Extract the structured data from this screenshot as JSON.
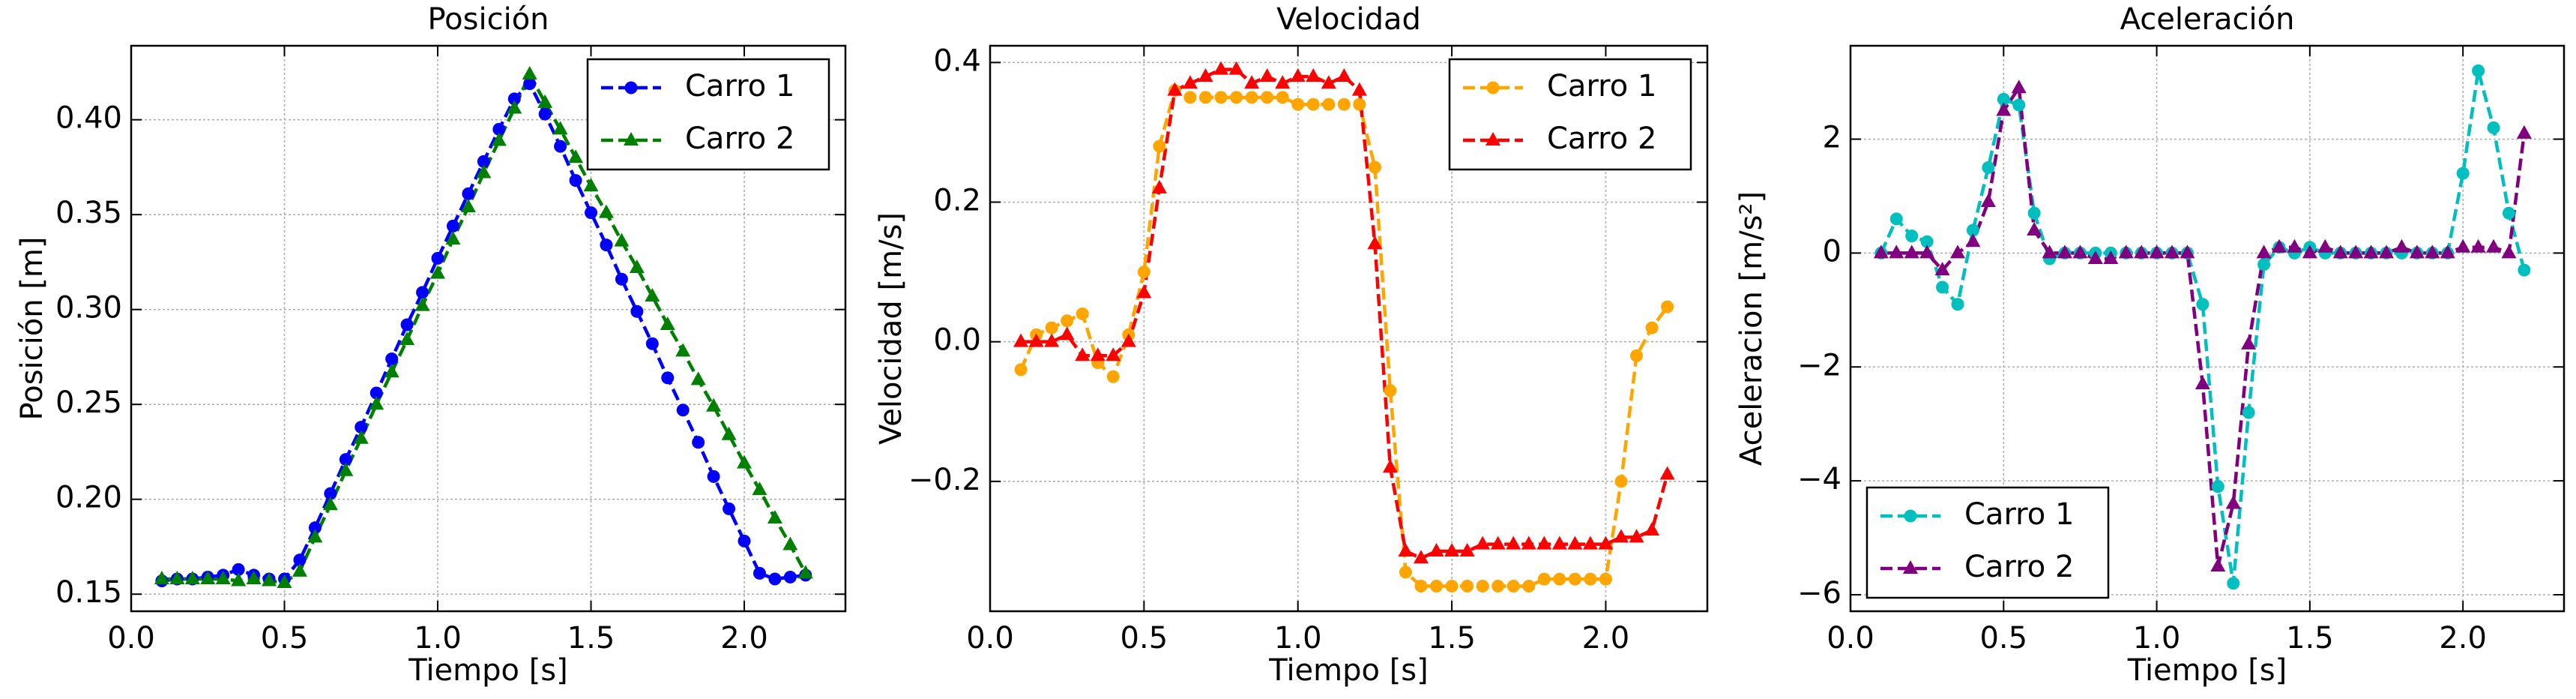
{
  "chart_data": [
    {
      "type": "line",
      "title": "Posición",
      "x_label": "Tiempo [s]",
      "y_label": "Posición [m]",
      "legend": "upper right",
      "grid": true,
      "x": [
        0.1,
        0.15,
        0.2,
        0.25,
        0.3,
        0.35,
        0.4,
        0.45,
        0.5,
        0.55,
        0.6,
        0.65,
        0.7,
        0.75,
        0.8,
        0.85,
        0.9,
        0.95,
        1.0,
        1.05,
        1.1,
        1.15,
        1.2,
        1.25,
        1.3,
        1.35,
        1.4,
        1.45,
        1.5,
        1.55,
        1.6,
        1.65,
        1.7,
        1.75,
        1.8,
        1.85,
        1.9,
        1.95,
        2.0,
        2.05,
        2.1,
        2.15,
        2.2
      ],
      "series": [
        {
          "name": "Carro 1",
          "color": "#0000ff",
          "marker": "circle",
          "values": [
            0.157,
            0.158,
            0.158,
            0.159,
            0.16,
            0.163,
            0.16,
            0.158,
            0.158,
            0.168,
            0.185,
            0.203,
            0.221,
            0.238,
            0.256,
            0.274,
            0.292,
            0.309,
            0.327,
            0.344,
            0.361,
            0.378,
            0.395,
            0.411,
            0.419,
            0.403,
            0.386,
            0.368,
            0.351,
            0.334,
            0.316,
            0.299,
            0.282,
            0.264,
            0.247,
            0.23,
            0.212,
            0.195,
            0.178,
            0.161,
            0.158,
            0.159,
            0.16
          ]
        },
        {
          "name": "Carro 2",
          "color": "#008000",
          "marker": "triangle",
          "values": [
            0.158,
            0.158,
            0.158,
            0.158,
            0.158,
            0.157,
            0.158,
            0.157,
            0.156,
            0.162,
            0.18,
            0.197,
            0.215,
            0.232,
            0.25,
            0.267,
            0.284,
            0.302,
            0.319,
            0.337,
            0.354,
            0.372,
            0.389,
            0.406,
            0.424,
            0.409,
            0.395,
            0.38,
            0.365,
            0.351,
            0.336,
            0.322,
            0.307,
            0.292,
            0.278,
            0.263,
            0.249,
            0.234,
            0.219,
            0.205,
            0.19,
            0.176,
            0.161
          ]
        }
      ],
      "xlim": [
        0,
        2.33
      ],
      "xticks": [
        {
          "value": 0,
          "label": "0.0"
        },
        0.5,
        {
          "value": 1,
          "label": "1.0"
        },
        1.5,
        {
          "value": 2,
          "label": "2.0"
        }
      ],
      "ylim": [
        0.141,
        0.439
      ],
      "yticks": [
        0.15,
        {
          "value": 0.2,
          "label": "0.20"
        },
        0.25,
        {
          "value": 0.3,
          "label": "0.30"
        },
        0.35,
        {
          "value": 0.4,
          "label": "0.40"
        }
      ]
    },
    {
      "type": "line",
      "title": "Velocidad",
      "x_label": "Tiempo [s]",
      "y_label": "Velocidad [m/s]",
      "legend": "upper right",
      "grid": true,
      "x": [
        0.1,
        0.15,
        0.2,
        0.25,
        0.3,
        0.35,
        0.4,
        0.45,
        0.5,
        0.55,
        0.6,
        0.65,
        0.7,
        0.75,
        0.8,
        0.85,
        0.9,
        0.95,
        1.0,
        1.05,
        1.1,
        1.15,
        1.2,
        1.25,
        1.3,
        1.35,
        1.4,
        1.45,
        1.5,
        1.55,
        1.6,
        1.65,
        1.7,
        1.75,
        1.8,
        1.85,
        1.9,
        1.95,
        2.0,
        2.05,
        2.1,
        2.15,
        2.2
      ],
      "series": [
        {
          "name": "Carro 1",
          "color": "#ffa500",
          "marker": "circle",
          "values": [
            -0.04,
            0.01,
            0.02,
            0.03,
            0.04,
            -0.03,
            -0.05,
            0.01,
            0.1,
            0.28,
            0.36,
            0.35,
            0.35,
            0.35,
            0.35,
            0.35,
            0.35,
            0.35,
            0.34,
            0.34,
            0.34,
            0.34,
            0.34,
            0.25,
            -0.07,
            -0.33,
            -0.35,
            -0.35,
            -0.35,
            -0.35,
            -0.35,
            -0.35,
            -0.35,
            -0.35,
            -0.34,
            -0.34,
            -0.34,
            -0.34,
            -0.34,
            -0.2,
            -0.02,
            0.02,
            0.05
          ]
        },
        {
          "name": "Carro 2",
          "color": "#ff0000",
          "marker": "triangle",
          "values": [
            0.0,
            0.0,
            0.0,
            0.01,
            -0.02,
            -0.02,
            -0.02,
            0.0,
            0.07,
            0.22,
            0.36,
            0.37,
            0.38,
            0.39,
            0.39,
            0.37,
            0.38,
            0.37,
            0.38,
            0.38,
            0.37,
            0.38,
            0.36,
            0.14,
            -0.18,
            -0.3,
            -0.31,
            -0.3,
            -0.3,
            -0.3,
            -0.29,
            -0.29,
            -0.29,
            -0.29,
            -0.29,
            -0.29,
            -0.29,
            -0.29,
            -0.29,
            -0.28,
            -0.28,
            -0.27,
            -0.19
          ]
        }
      ],
      "xlim": [
        0,
        2.33
      ],
      "xticks": [
        {
          "value": 0,
          "label": "0.0"
        },
        0.5,
        {
          "value": 1,
          "label": "1.0"
        },
        1.5,
        {
          "value": 2,
          "label": "2.0"
        }
      ],
      "ylim": [
        -0.386,
        0.424
      ],
      "yticks": [
        {
          "value": -0.2,
          "label": "−0.2"
        },
        {
          "value": 0,
          "label": "0.0"
        },
        0.2,
        0.4
      ]
    },
    {
      "type": "line",
      "title": "Aceleración",
      "x_label": "Tiempo [s]",
      "y_label": "Aceleracion [m/s²]",
      "legend": "lower left",
      "grid": true,
      "x": [
        0.1,
        0.15,
        0.2,
        0.25,
        0.3,
        0.35,
        0.4,
        0.45,
        0.5,
        0.55,
        0.6,
        0.65,
        0.7,
        0.75,
        0.8,
        0.85,
        0.9,
        0.95,
        1.0,
        1.05,
        1.1,
        1.15,
        1.2,
        1.25,
        1.3,
        1.35,
        1.4,
        1.45,
        1.5,
        1.55,
        1.6,
        1.65,
        1.7,
        1.75,
        1.8,
        1.85,
        1.9,
        1.95,
        2.0,
        2.05,
        2.1,
        2.15,
        2.2
      ],
      "series": [
        {
          "name": "Carro 1",
          "color": "#00bfbf",
          "marker": "circle",
          "values": [
            0,
            0.6,
            0.3,
            0.2,
            -0.6,
            -0.9,
            0.4,
            1.5,
            2.7,
            2.6,
            0.7,
            -0.1,
            0,
            0,
            0,
            0,
            0,
            0,
            0,
            0,
            0,
            -0.9,
            -4.1,
            -5.8,
            -2.8,
            -0.2,
            0.1,
            0,
            0.1,
            0,
            0,
            0,
            0,
            0,
            0,
            0,
            0,
            0,
            1.4,
            3.2,
            2.2,
            0.7,
            -0.3
          ]
        },
        {
          "name": "Carro 2",
          "color": "#800080",
          "marker": "triangle",
          "values": [
            0,
            0,
            0,
            0,
            -0.3,
            0,
            0.2,
            0.9,
            2.5,
            2.9,
            0.4,
            0,
            0,
            0,
            -0.1,
            -0.1,
            0,
            0,
            0,
            0,
            0,
            -2.3,
            -5.5,
            -4.4,
            -1.6,
            0,
            0.1,
            0.1,
            0,
            0.1,
            0,
            0,
            0,
            0,
            0.1,
            0,
            0,
            0,
            0.1,
            0.1,
            0.1,
            0.0,
            2.1
          ]
        }
      ],
      "xlim": [
        0,
        2.33
      ],
      "xticks": [
        {
          "value": 0,
          "label": "0.0"
        },
        0.5,
        {
          "value": 1,
          "label": "1.0"
        },
        1.5,
        {
          "value": 2,
          "label": "2.0"
        }
      ],
      "ylim": [
        -6.29,
        3.64
      ],
      "yticks": [
        {
          "value": -6,
          "label": "−6"
        },
        {
          "value": -4,
          "label": "−4"
        },
        {
          "value": -2,
          "label": "−2"
        },
        0,
        2
      ]
    }
  ]
}
